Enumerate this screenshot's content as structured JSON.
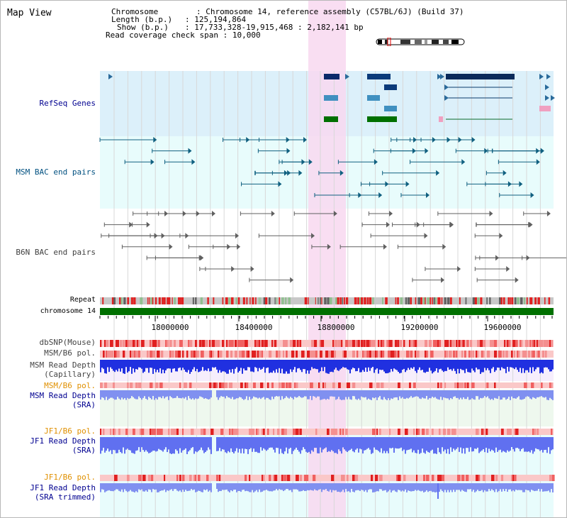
{
  "view_title": "Map View",
  "header": {
    "chromosome_label": "Chromosome",
    "chromosome_value": "Chromosome 14, reference assembly (C57BL/6J) (Build 37)",
    "length_label": "Length (b.p.)",
    "length_value": "125,194,864",
    "show_label": "Show (b.p.)",
    "show_value": "17,733,328-19,915,468 : 2,182,141 bp",
    "coverage_label": "Read coverage check span",
    "coverage_value": "10,000"
  },
  "tracks": {
    "refseq": "RefSeq Genes",
    "msm_bac": "MSM BAC end pairs",
    "b6n_bac": "B6N BAC end pairs",
    "repeat": "Repeat",
    "chromosome": "chromosome 14",
    "dbsnp": "dbSNP(Mouse)",
    "msm_pol": "MSM/B6 pol.",
    "msm_depth_cap_1": "MSM Read Depth",
    "msm_depth_cap_2": "(Capillary)",
    "msm_pol_2": "MSM/B6 pol.",
    "msm_depth_sra_1": "MSM Read Depth",
    "msm_depth_sra_2": "(SRA)",
    "jf1_pol": "JF1/B6 pol.",
    "jf1_depth_sra_1": "JF1 Read Depth",
    "jf1_depth_sra_2": "(SRA)",
    "jf1_pol_2": "JF1/B6 pol.",
    "jf1_depth_trim_1": "JF1 Read Depth",
    "jf1_depth_trim_2": "(SRA trimmed)"
  },
  "axis": {
    "ticks": [
      "18000000",
      "18400000",
      "18800000",
      "19200000",
      "19600000"
    ]
  },
  "colors": {
    "refseq_bg": "#dcf0fa",
    "msm_bg": "#e8fcfc",
    "highlight": "#f8d8f0",
    "chromosome_bar": "#007000",
    "repeat_red": "#e02020",
    "msm_label": "#005080",
    "b6n_label": "#404040",
    "blue_label": "#000090",
    "orange_label": "#e09000"
  }
}
